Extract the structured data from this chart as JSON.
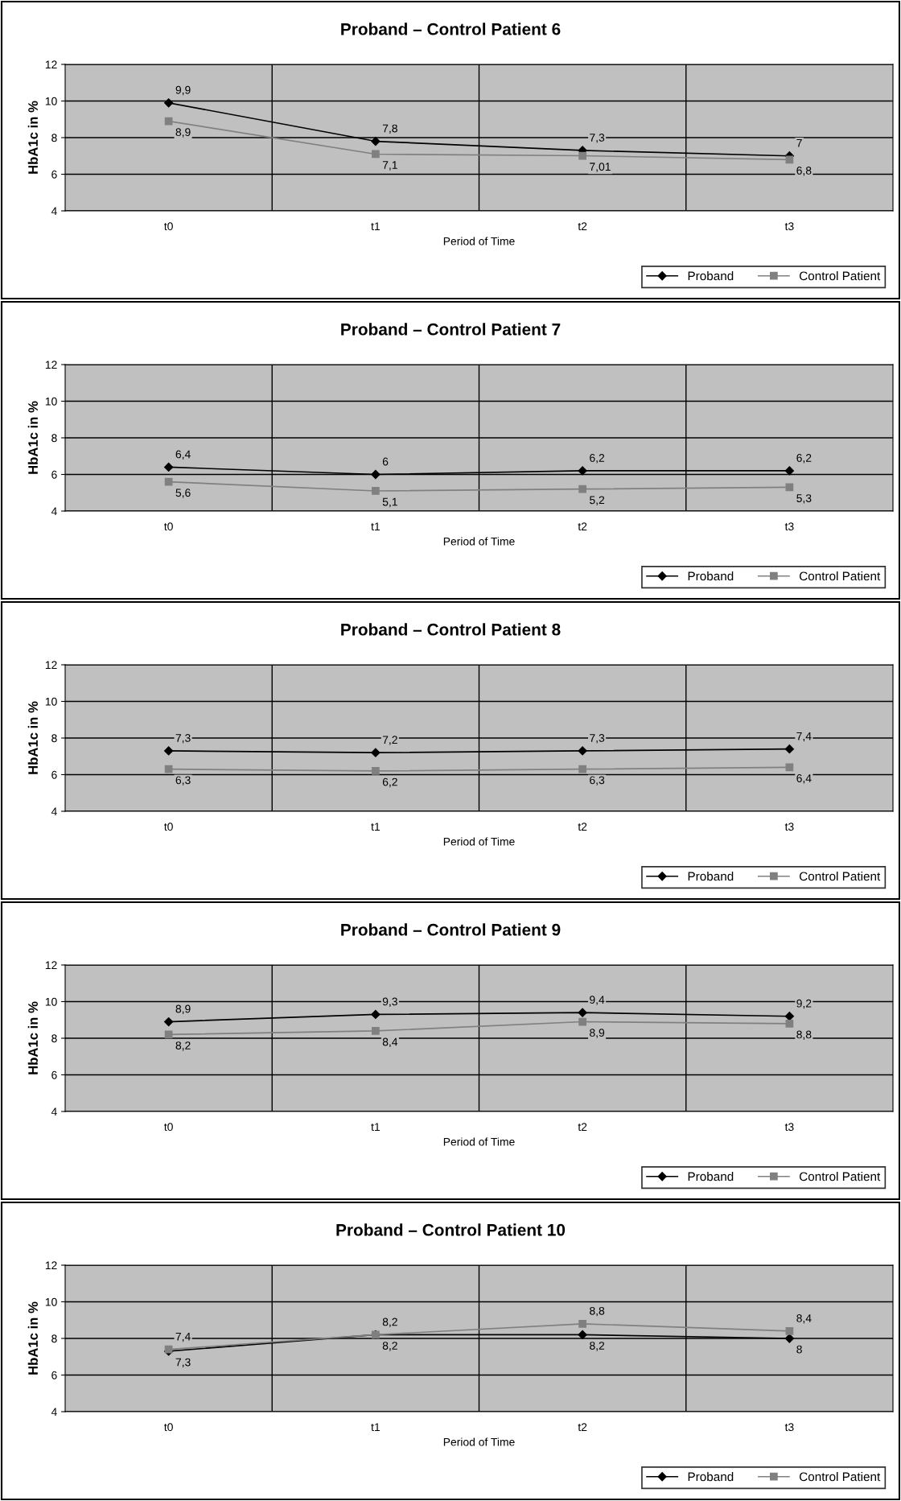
{
  "chart_data": [
    {
      "type": "line",
      "title": "Proband – Control Patient 6",
      "xlabel": "Period of Time",
      "ylabel": "HbA1c in %",
      "categories": [
        "t0",
        "t1",
        "t2",
        "t3"
      ],
      "ylim": [
        4,
        12
      ],
      "yticks": [
        4,
        6,
        8,
        10,
        12
      ],
      "grid": true,
      "legend": "bottom right",
      "series": [
        {
          "name": "Proband",
          "color": "#000000",
          "marker": "diamond",
          "values": [
            9.9,
            7.8,
            7.3,
            7
          ],
          "value_labels": [
            "9,9",
            "7,8",
            "7,3",
            "7"
          ]
        },
        {
          "name": "Control Patient",
          "color": "#808080",
          "marker": "square",
          "values": [
            8.9,
            7.1,
            7.01,
            6.8
          ],
          "value_labels": [
            "8,9",
            "7,1",
            "7,01",
            "6,8"
          ]
        }
      ]
    },
    {
      "type": "line",
      "title": "Proband – Control Patient 7",
      "xlabel": "Period of Time",
      "ylabel": "HbA1c in %",
      "categories": [
        "t0",
        "t1",
        "t2",
        "t3"
      ],
      "ylim": [
        4,
        12
      ],
      "yticks": [
        4,
        6,
        8,
        10,
        12
      ],
      "grid": true,
      "legend": "bottom right",
      "series": [
        {
          "name": "Proband",
          "color": "#000000",
          "marker": "diamond",
          "values": [
            6.4,
            6,
            6.2,
            6.2
          ],
          "value_labels": [
            "6,4",
            "6",
            "6,2",
            "6,2"
          ]
        },
        {
          "name": "Control Patient",
          "color": "#808080",
          "marker": "square",
          "values": [
            5.6,
            5.1,
            5.2,
            5.3
          ],
          "value_labels": [
            "5,6",
            "5,1",
            "5,2",
            "5,3"
          ]
        }
      ]
    },
    {
      "type": "line",
      "title": "Proband – Control Patient 8",
      "xlabel": "Period of Time",
      "ylabel": "HbA1c in %",
      "categories": [
        "t0",
        "t1",
        "t2",
        "t3"
      ],
      "ylim": [
        4,
        12
      ],
      "yticks": [
        4,
        6,
        8,
        10,
        12
      ],
      "grid": true,
      "legend": "bottom right",
      "series": [
        {
          "name": "Proband",
          "color": "#000000",
          "marker": "diamond",
          "values": [
            7.3,
            7.2,
            7.3,
            7.4
          ],
          "value_labels": [
            "7,3",
            "7,2",
            "7,3",
            "7,4"
          ]
        },
        {
          "name": "Control Patient",
          "color": "#808080",
          "marker": "square",
          "values": [
            6.3,
            6.2,
            6.3,
            6.4
          ],
          "value_labels": [
            "6,3",
            "6,2",
            "6,3",
            "6,4"
          ]
        }
      ]
    },
    {
      "type": "line",
      "title": "Proband – Control Patient 9",
      "xlabel": "Period of Time",
      "ylabel": "HbA1c in %",
      "categories": [
        "t0",
        "t1",
        "t2",
        "t3"
      ],
      "ylim": [
        4,
        12
      ],
      "yticks": [
        4,
        6,
        8,
        10,
        12
      ],
      "grid": true,
      "legend": "bottom right",
      "series": [
        {
          "name": "Proband",
          "color": "#000000",
          "marker": "diamond",
          "values": [
            8.9,
            9.3,
            9.4,
            9.2
          ],
          "value_labels": [
            "8,9",
            "9,3",
            "9,4",
            "9,2"
          ]
        },
        {
          "name": "Control Patient",
          "color": "#808080",
          "marker": "square",
          "values": [
            8.2,
            8.4,
            8.9,
            8.8
          ],
          "value_labels": [
            "8,2",
            "8,4",
            "8,9",
            "8,8"
          ]
        }
      ]
    },
    {
      "type": "line",
      "title": "Proband – Control Patient 10",
      "xlabel": "Period of Time",
      "ylabel": "HbA1c in %",
      "categories": [
        "t0",
        "t1",
        "t2",
        "t3"
      ],
      "ylim": [
        4,
        12
      ],
      "yticks": [
        4,
        6,
        8,
        10,
        12
      ],
      "grid": true,
      "legend": "bottom right",
      "series": [
        {
          "name": "Proband",
          "color": "#000000",
          "marker": "diamond",
          "values": [
            7.3,
            8.2,
            8.2,
            8
          ],
          "value_labels": [
            "7,3",
            "8,2",
            "8,2",
            "8"
          ]
        },
        {
          "name": "Control Patient",
          "color": "#808080",
          "marker": "square",
          "values": [
            7.4,
            8.2,
            8.8,
            8.4
          ],
          "value_labels": [
            "7,4",
            "8,2",
            "8,8",
            "8,4"
          ]
        }
      ]
    }
  ]
}
